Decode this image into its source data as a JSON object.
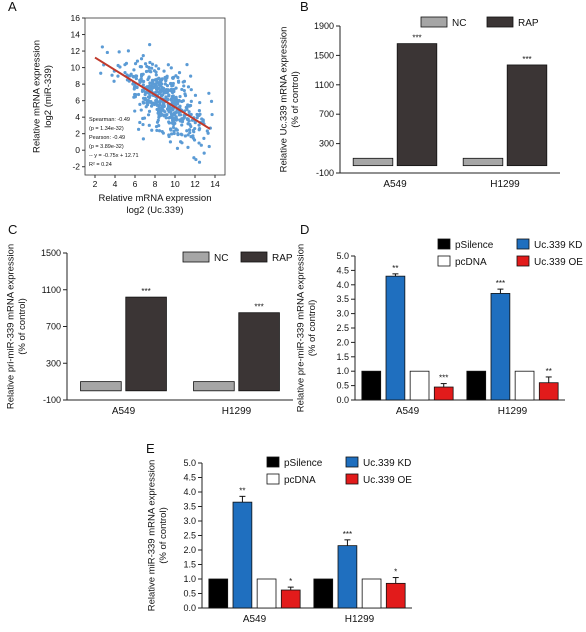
{
  "chart_data": [
    {
      "panel": "A",
      "type": "scatter",
      "xlabel": "Relative mRNA expression\nlog2 (Uc.339)",
      "ylabel": "Relative mRNA expression\nlog2 (miR-339)",
      "xlim": [
        1,
        15
      ],
      "ylim": [
        -3,
        16
      ],
      "xticks": [
        2,
        4,
        6,
        8,
        10,
        12,
        14
      ],
      "yticks": [
        -2,
        0,
        2,
        4,
        6,
        8,
        10,
        12,
        14,
        16
      ],
      "annotations": [
        "Spearman: -0.49",
        "(p = 1.34e-32)",
        "Pearson: -0.49",
        "(p = 3.89e-32)",
        "-- y = -0.75x + 12.71",
        "R² = 0.24"
      ],
      "regression": {
        "slope": -0.75,
        "intercept": 12.71,
        "x_range": [
          2,
          13.5
        ]
      },
      "colors": {
        "points": "#5b9bd5",
        "line": "#c0392b"
      }
    },
    {
      "panel": "B",
      "type": "bar",
      "ylabel": "Relative Uc.339 mRNA expression\n(% of control)",
      "categories": [
        "A549",
        "H1299"
      ],
      "series": [
        {
          "name": "NC",
          "values": [
            100,
            100
          ],
          "color": "#a6a6a6"
        },
        {
          "name": "RAP",
          "values": [
            1660,
            1370
          ],
          "color": "#3b3535"
        }
      ],
      "ylim": [
        -100,
        1900
      ],
      "yticks": [
        -100,
        300,
        700,
        1100,
        1500,
        1900
      ],
      "sig": [
        [
          "",
          "***"
        ],
        [
          "",
          "***"
        ]
      ]
    },
    {
      "panel": "C",
      "type": "bar",
      "ylabel": "Relative pri-miR-339 mRNA expression\n(% of control)",
      "categories": [
        "A549",
        "H1299"
      ],
      "series": [
        {
          "name": "NC",
          "values": [
            100,
            100
          ],
          "color": "#a6a6a6"
        },
        {
          "name": "RAP",
          "values": [
            1020,
            850
          ],
          "color": "#3b3535"
        }
      ],
      "ylim": [
        -100,
        1500
      ],
      "yticks": [
        -100,
        300,
        700,
        1100,
        1500
      ],
      "sig": [
        [
          "",
          "***"
        ],
        [
          "",
          "***"
        ]
      ]
    },
    {
      "panel": "D",
      "type": "bar",
      "ylabel": "Relative pre-miR-339 mRNA expression\n(% of control)",
      "categories": [
        "A549",
        "H1299"
      ],
      "series": [
        {
          "name": "pSilence",
          "values": [
            1.0,
            1.0
          ],
          "errors": [
            0,
            0
          ],
          "color": "#000000"
        },
        {
          "name": "Uc.339 KD",
          "values": [
            4.3,
            3.7
          ],
          "errors": [
            0.08,
            0.15
          ],
          "color": "#1f6fbf"
        },
        {
          "name": "pcDNA",
          "values": [
            1.0,
            1.0
          ],
          "errors": [
            0,
            0
          ],
          "color": "#ffffff"
        },
        {
          "name": "Uc.339 OE",
          "values": [
            0.45,
            0.6
          ],
          "errors": [
            0.12,
            0.2
          ],
          "color": "#e21b1b"
        }
      ],
      "ylim": [
        0,
        5.0
      ],
      "yticks": [
        0.0,
        0.5,
        1.0,
        1.5,
        2.0,
        2.5,
        3.0,
        3.5,
        4.0,
        4.5,
        5.0
      ],
      "sig": [
        [
          "",
          "**",
          "",
          "***"
        ],
        [
          "",
          "***",
          "",
          "**"
        ]
      ]
    },
    {
      "panel": "E",
      "type": "bar",
      "ylabel": "Relative miR-339 mRNA expression\n(% of control)",
      "categories": [
        "A549",
        "H1299"
      ],
      "series": [
        {
          "name": "pSilence",
          "values": [
            1.0,
            1.0
          ],
          "errors": [
            0,
            0
          ],
          "color": "#000000"
        },
        {
          "name": "Uc.339 KD",
          "values": [
            3.65,
            2.15
          ],
          "errors": [
            0.2,
            0.2
          ],
          "color": "#1f6fbf"
        },
        {
          "name": "pcDNA",
          "values": [
            1.0,
            1.0
          ],
          "errors": [
            0,
            0
          ],
          "color": "#ffffff"
        },
        {
          "name": "Uc.339 OE",
          "values": [
            0.62,
            0.85
          ],
          "errors": [
            0.1,
            0.2
          ],
          "color": "#e21b1b"
        }
      ],
      "ylim": [
        0,
        5.0
      ],
      "yticks": [
        0.0,
        0.5,
        1.0,
        1.5,
        2.0,
        2.5,
        3.0,
        3.5,
        4.0,
        4.5,
        5.0
      ],
      "sig": [
        [
          "",
          "**",
          "",
          "*"
        ],
        [
          "",
          "***",
          "",
          "*"
        ]
      ]
    }
  ]
}
